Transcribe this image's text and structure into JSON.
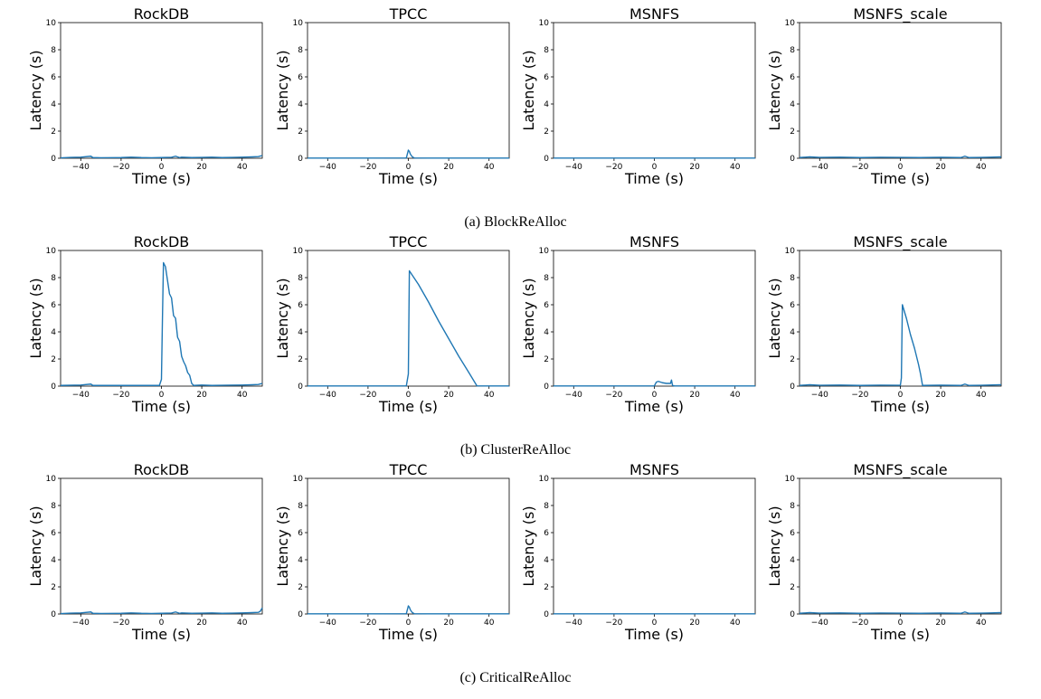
{
  "series_color": "#1f77b4",
  "chart_data": [
    {
      "caption": "(a) BlockReAlloc",
      "panels": [
        {
          "type": "line",
          "title": "RockDB",
          "xlabel": "Time (s)",
          "ylabel": "Latency (s)",
          "xlim": [
            -50,
            50
          ],
          "ylim": [
            0,
            10
          ],
          "xticks": [
            -40,
            -20,
            0,
            20,
            40
          ],
          "xtick_labels": [
            "−40",
            "−20",
            "0",
            "20",
            "40"
          ],
          "yticks": [
            0,
            2,
            4,
            6,
            8,
            10
          ],
          "series": [
            {
              "x": [
                -50,
                -45,
                -40,
                -35,
                -34,
                -30,
                -20,
                -15,
                -10,
                -5,
                0,
                5,
                7,
                9,
                10,
                15,
                20,
                25,
                30,
                35,
                40,
                45,
                48,
                50
              ],
              "y": [
                0.03,
                0.06,
                0.08,
                0.15,
                0.05,
                0.04,
                0.05,
                0.08,
                0.05,
                0.04,
                0.05,
                0.07,
                0.15,
                0.05,
                0.08,
                0.05,
                0.06,
                0.08,
                0.05,
                0.06,
                0.08,
                0.1,
                0.12,
                0.2
              ]
            }
          ]
        },
        {
          "type": "line",
          "title": "TPCC",
          "xlabel": "Time (s)",
          "ylabel": "Latency (s)",
          "xlim": [
            -50,
            50
          ],
          "ylim": [
            0,
            10
          ],
          "xticks": [
            -40,
            -20,
            0,
            20,
            40
          ],
          "xtick_labels": [
            "−40",
            "−20",
            "0",
            "20",
            "40"
          ],
          "yticks": [
            0,
            2,
            4,
            6,
            8,
            10
          ],
          "series": [
            {
              "x": [
                -50,
                -20,
                -1,
                0,
                0.5,
                1,
                2,
                3,
                10,
                30,
                50
              ],
              "y": [
                0.01,
                0.01,
                0.02,
                0.6,
                0.5,
                0.3,
                0.1,
                0.02,
                0.01,
                0.01,
                0.01
              ]
            }
          ]
        },
        {
          "type": "line",
          "title": "MSNFS",
          "xlabel": "Time (s)",
          "ylabel": "Latency (s)",
          "xlim": [
            -50,
            50
          ],
          "ylim": [
            0,
            10
          ],
          "xticks": [
            -40,
            -20,
            0,
            20,
            40
          ],
          "xtick_labels": [
            "−40",
            "−20",
            "0",
            "20",
            "40"
          ],
          "yticks": [
            0,
            2,
            4,
            6,
            8,
            10
          ],
          "series": [
            {
              "x": [
                -50,
                50
              ],
              "y": [
                0.01,
                0.01
              ]
            }
          ]
        },
        {
          "type": "line",
          "title": "MSNFS_scale",
          "xlabel": "Time (s)",
          "ylabel": "Latency (s)",
          "xlim": [
            -50,
            50
          ],
          "ylim": [
            0,
            10
          ],
          "xticks": [
            -40,
            -20,
            0,
            20,
            40
          ],
          "xtick_labels": [
            "−40",
            "−20",
            "0",
            "20",
            "40"
          ],
          "yticks": [
            0,
            2,
            4,
            6,
            8,
            10
          ],
          "series": [
            {
              "x": [
                -50,
                -45,
                -40,
                -30,
                -20,
                -10,
                0,
                10,
                20,
                30,
                32,
                34,
                40,
                45,
                50
              ],
              "y": [
                0.05,
                0.1,
                0.06,
                0.08,
                0.05,
                0.07,
                0.06,
                0.05,
                0.07,
                0.05,
                0.15,
                0.05,
                0.06,
                0.08,
                0.1
              ]
            }
          ]
        }
      ]
    },
    {
      "caption": "(b) ClusterReAlloc",
      "panels": [
        {
          "type": "line",
          "title": "RockDB",
          "xlabel": "Time (s)",
          "ylabel": "Latency (s)",
          "xlim": [
            -50,
            50
          ],
          "ylim": [
            0,
            10
          ],
          "xticks": [
            -40,
            -20,
            0,
            20,
            40
          ],
          "xtick_labels": [
            "−40",
            "−20",
            "0",
            "20",
            "40"
          ],
          "yticks": [
            0,
            2,
            4,
            6,
            8,
            10
          ],
          "series": [
            {
              "x": [
                -50,
                -40,
                -35,
                -34,
                -30,
                -20,
                -10,
                -1,
                0,
                0.5,
                1,
                2,
                3,
                4,
                5,
                6,
                7,
                8,
                9,
                10,
                11,
                12,
                13,
                14,
                15,
                16,
                20,
                25,
                30,
                40,
                45,
                48,
                50
              ],
              "y": [
                0.05,
                0.08,
                0.15,
                0.05,
                0.05,
                0.05,
                0.05,
                0.05,
                0.5,
                5.0,
                9.1,
                8.8,
                7.8,
                6.8,
                6.5,
                5.2,
                5.0,
                3.6,
                3.3,
                2.2,
                1.8,
                1.5,
                1.0,
                0.8,
                0.2,
                0.05,
                0.08,
                0.05,
                0.06,
                0.08,
                0.1,
                0.12,
                0.2
              ]
            }
          ]
        },
        {
          "type": "line",
          "title": "TPCC",
          "xlabel": "Time (s)",
          "ylabel": "Latency (s)",
          "xlim": [
            -50,
            50
          ],
          "ylim": [
            0,
            10
          ],
          "xticks": [
            -40,
            -20,
            0,
            20,
            40
          ],
          "xtick_labels": [
            "−40",
            "−20",
            "0",
            "20",
            "40"
          ],
          "yticks": [
            0,
            2,
            4,
            6,
            8,
            10
          ],
          "series": [
            {
              "x": [
                -50,
                -1,
                0,
                0.5,
                5,
                10,
                15,
                20,
                25,
                30,
                34,
                40,
                50
              ],
              "y": [
                0.01,
                0.02,
                0.9,
                8.5,
                7.5,
                6.2,
                4.8,
                3.5,
                2.2,
                1.0,
                0.02,
                0.01,
                0.01
              ]
            }
          ]
        },
        {
          "type": "line",
          "title": "MSNFS",
          "xlabel": "Time (s)",
          "ylabel": "Latency (s)",
          "xlim": [
            -50,
            50
          ],
          "ylim": [
            0,
            10
          ],
          "xticks": [
            -40,
            -20,
            0,
            20,
            40
          ],
          "xtick_labels": [
            "−40",
            "−20",
            "0",
            "20",
            "40"
          ],
          "yticks": [
            0,
            2,
            4,
            6,
            8,
            10
          ],
          "series": [
            {
              "x": [
                -50,
                0,
                1,
                2,
                4,
                6,
                8,
                8.5,
                9,
                10,
                50
              ],
              "y": [
                0.01,
                0.02,
                0.3,
                0.35,
                0.25,
                0.2,
                0.2,
                0.45,
                0.05,
                0.01,
                0.01
              ]
            }
          ]
        },
        {
          "type": "line",
          "title": "MSNFS_scale",
          "xlabel": "Time (s)",
          "ylabel": "Latency (s)",
          "xlim": [
            -50,
            50
          ],
          "ylim": [
            0,
            10
          ],
          "xticks": [
            -40,
            -20,
            0,
            20,
            40
          ],
          "xtick_labels": [
            "−40",
            "−20",
            "0",
            "20",
            "40"
          ],
          "yticks": [
            0,
            2,
            4,
            6,
            8,
            10
          ],
          "series": [
            {
              "x": [
                -50,
                -45,
                -40,
                -30,
                -20,
                -10,
                0,
                0.5,
                1,
                3,
                5,
                7,
                9,
                10,
                11,
                20,
                30,
                32,
                34,
                40,
                50
              ],
              "y": [
                0.05,
                0.1,
                0.06,
                0.08,
                0.05,
                0.07,
                0.06,
                0.6,
                6.0,
                5.0,
                3.8,
                2.8,
                1.6,
                0.9,
                0.05,
                0.07,
                0.05,
                0.15,
                0.05,
                0.06,
                0.1
              ]
            }
          ]
        }
      ]
    },
    {
      "caption": "(c) CriticalReAlloc",
      "panels": [
        {
          "type": "line",
          "title": "RockDB",
          "xlabel": "Time (s)",
          "ylabel": "Latency (s)",
          "xlim": [
            -50,
            50
          ],
          "ylim": [
            0,
            10
          ],
          "xticks": [
            -40,
            -20,
            0,
            20,
            40
          ],
          "xtick_labels": [
            "−40",
            "−20",
            "0",
            "20",
            "40"
          ],
          "yticks": [
            0,
            2,
            4,
            6,
            8,
            10
          ],
          "series": [
            {
              "x": [
                -50,
                -45,
                -40,
                -35,
                -34,
                -30,
                -20,
                -15,
                -10,
                -5,
                0,
                5,
                7,
                9,
                10,
                15,
                20,
                25,
                30,
                35,
                40,
                45,
                48,
                49,
                50
              ],
              "y": [
                0.03,
                0.06,
                0.08,
                0.15,
                0.05,
                0.04,
                0.05,
                0.08,
                0.05,
                0.04,
                0.05,
                0.07,
                0.15,
                0.05,
                0.08,
                0.05,
                0.06,
                0.08,
                0.05,
                0.06,
                0.08,
                0.1,
                0.12,
                0.2,
                0.45
              ]
            }
          ]
        },
        {
          "type": "line",
          "title": "TPCC",
          "xlabel": "Time (s)",
          "ylabel": "Latency (s)",
          "xlim": [
            -50,
            50
          ],
          "ylim": [
            0,
            10
          ],
          "xticks": [
            -40,
            -20,
            0,
            20,
            40
          ],
          "xtick_labels": [
            "−40",
            "−20",
            "0",
            "20",
            "40"
          ],
          "yticks": [
            0,
            2,
            4,
            6,
            8,
            10
          ],
          "series": [
            {
              "x": [
                -50,
                -20,
                -1,
                0,
                0.5,
                1,
                2,
                3,
                10,
                30,
                50
              ],
              "y": [
                0.01,
                0.01,
                0.02,
                0.6,
                0.5,
                0.3,
                0.1,
                0.02,
                0.01,
                0.01,
                0.01
              ]
            }
          ]
        },
        {
          "type": "line",
          "title": "MSNFS",
          "xlabel": "Time (s)",
          "ylabel": "Latency (s)",
          "xlim": [
            -50,
            50
          ],
          "ylim": [
            0,
            10
          ],
          "xticks": [
            -40,
            -20,
            0,
            20,
            40
          ],
          "xtick_labels": [
            "−40",
            "−20",
            "0",
            "20",
            "40"
          ],
          "yticks": [
            0,
            2,
            4,
            6,
            8,
            10
          ],
          "series": [
            {
              "x": [
                -50,
                50
              ],
              "y": [
                0.01,
                0.01
              ]
            }
          ]
        },
        {
          "type": "line",
          "title": "MSNFS_scale",
          "xlabel": "Time (s)",
          "ylabel": "Latency (s)",
          "xlim": [
            -50,
            50
          ],
          "ylim": [
            0,
            10
          ],
          "xticks": [
            -40,
            -20,
            0,
            20,
            40
          ],
          "xtick_labels": [
            "−40",
            "−20",
            "0",
            "20",
            "40"
          ],
          "yticks": [
            0,
            2,
            4,
            6,
            8,
            10
          ],
          "series": [
            {
              "x": [
                -50,
                -45,
                -40,
                -30,
                -20,
                -10,
                0,
                10,
                20,
                30,
                32,
                34,
                40,
                45,
                50
              ],
              "y": [
                0.05,
                0.1,
                0.06,
                0.08,
                0.05,
                0.07,
                0.06,
                0.05,
                0.07,
                0.05,
                0.15,
                0.05,
                0.06,
                0.08,
                0.1
              ]
            }
          ]
        }
      ]
    }
  ]
}
